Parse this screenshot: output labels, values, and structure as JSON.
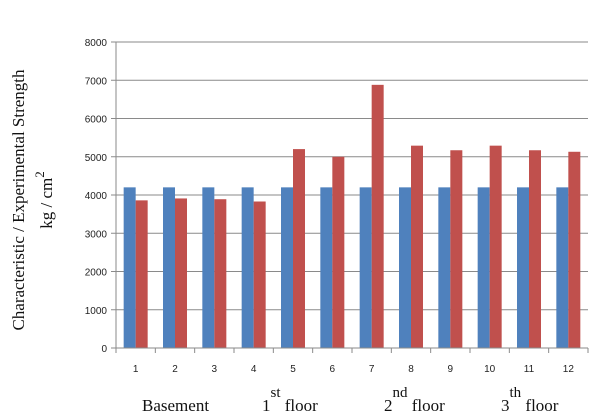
{
  "chart_data": {
    "type": "bar",
    "categories": [
      "1",
      "2",
      "3",
      "4",
      "5",
      "6",
      "7",
      "8",
      "9",
      "10",
      "11",
      "12"
    ],
    "series": [
      {
        "values": [
          4200,
          4200,
          4200,
          4200,
          4200,
          4200,
          4200,
          4200,
          4200,
          4200,
          4200,
          4200
        ],
        "color": "#4f81bd"
      },
      {
        "values": [
          3860,
          3910,
          3890,
          3830,
          5200,
          5000,
          6880,
          5290,
          5170,
          5290,
          5170,
          5130
        ],
        "color": "#c0504d"
      }
    ],
    "ylim": [
      0,
      8000
    ],
    "yticks": [
      "0",
      "1000",
      "2000",
      "3000",
      "4000",
      "5000",
      "6000",
      "7000",
      "8000"
    ],
    "ylabel_line1": "Characteristic / Experimental Strength",
    "ylabel_line2": "kg / cm",
    "ylabel_sup": "2",
    "grid": true,
    "groups": [
      {
        "text": "Basement",
        "sup": ""
      },
      {
        "text": "1",
        "sup": "st",
        "after": " floor"
      },
      {
        "text": "2",
        "sup": "nd",
        "after": " floor"
      },
      {
        "text": "3",
        "sup": "th",
        "after": " floor"
      }
    ]
  }
}
